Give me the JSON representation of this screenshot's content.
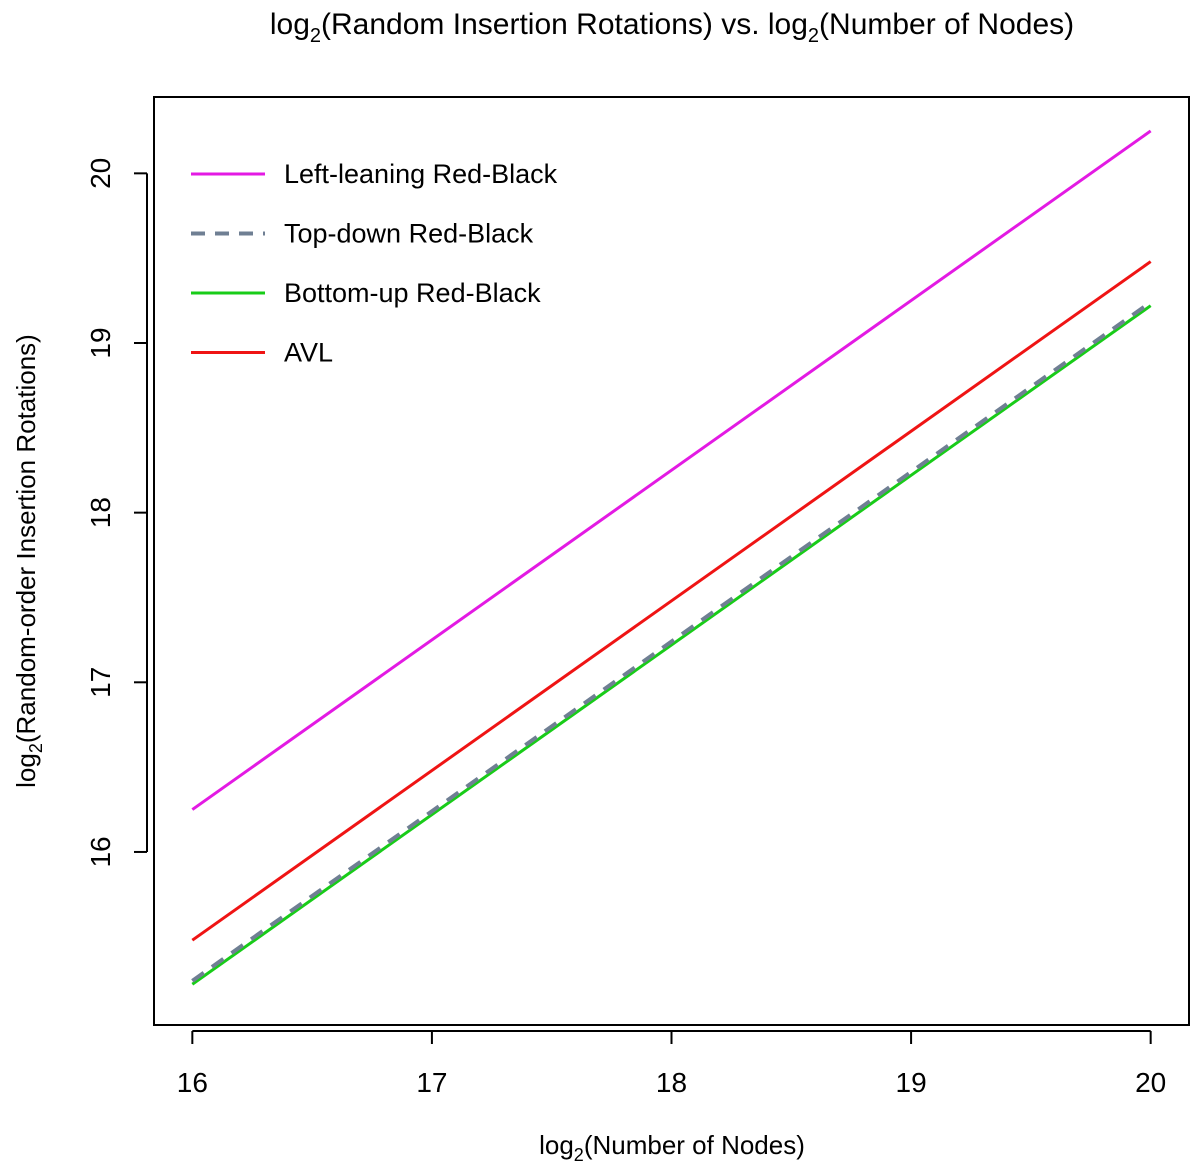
{
  "chart_data": {
    "type": "line",
    "title": {
      "main": "log",
      "sub": "2",
      "rest": "(Random Insertion Rotations) vs. log",
      "sub2": "2",
      "rest2": "(Number of Nodes)"
    },
    "xlabel": {
      "main": "log",
      "sub": "2",
      "rest": "(Number of Nodes)"
    },
    "ylabel": {
      "main": "log",
      "sub": "2",
      "rest": "(Random-order Insertion Rotations)"
    },
    "xlim": [
      15.84,
      20.16
    ],
    "ylim": [
      14.98,
      20.45
    ],
    "x_ticks": [
      16,
      17,
      18,
      19,
      20
    ],
    "x_tick_labels": [
      "16",
      "17",
      "18",
      "19",
      "20"
    ],
    "y_ticks": [
      16,
      17,
      18,
      19,
      20
    ],
    "y_tick_labels": [
      "16",
      "17",
      "18",
      "19",
      "20"
    ],
    "grid": false,
    "legend_position": "top-left",
    "series": [
      {
        "name": "Left-leaning Red-Black",
        "color": "#e31ae3",
        "dash": "solid",
        "x": [
          16,
          20
        ],
        "y": [
          16.25,
          20.25
        ]
      },
      {
        "name": "Top-down Red-Black",
        "color": "#6f7f93",
        "dash": "dashed",
        "x": [
          16,
          20
        ],
        "y": [
          15.24,
          19.24
        ]
      },
      {
        "name": "Bottom-up Red-Black",
        "color": "#18cc18",
        "dash": "solid",
        "x": [
          16,
          20
        ],
        "y": [
          15.22,
          19.22
        ]
      },
      {
        "name": "AVL",
        "color": "#ef1414",
        "dash": "solid",
        "x": [
          16,
          20
        ],
        "y": [
          15.48,
          19.48
        ]
      }
    ]
  }
}
